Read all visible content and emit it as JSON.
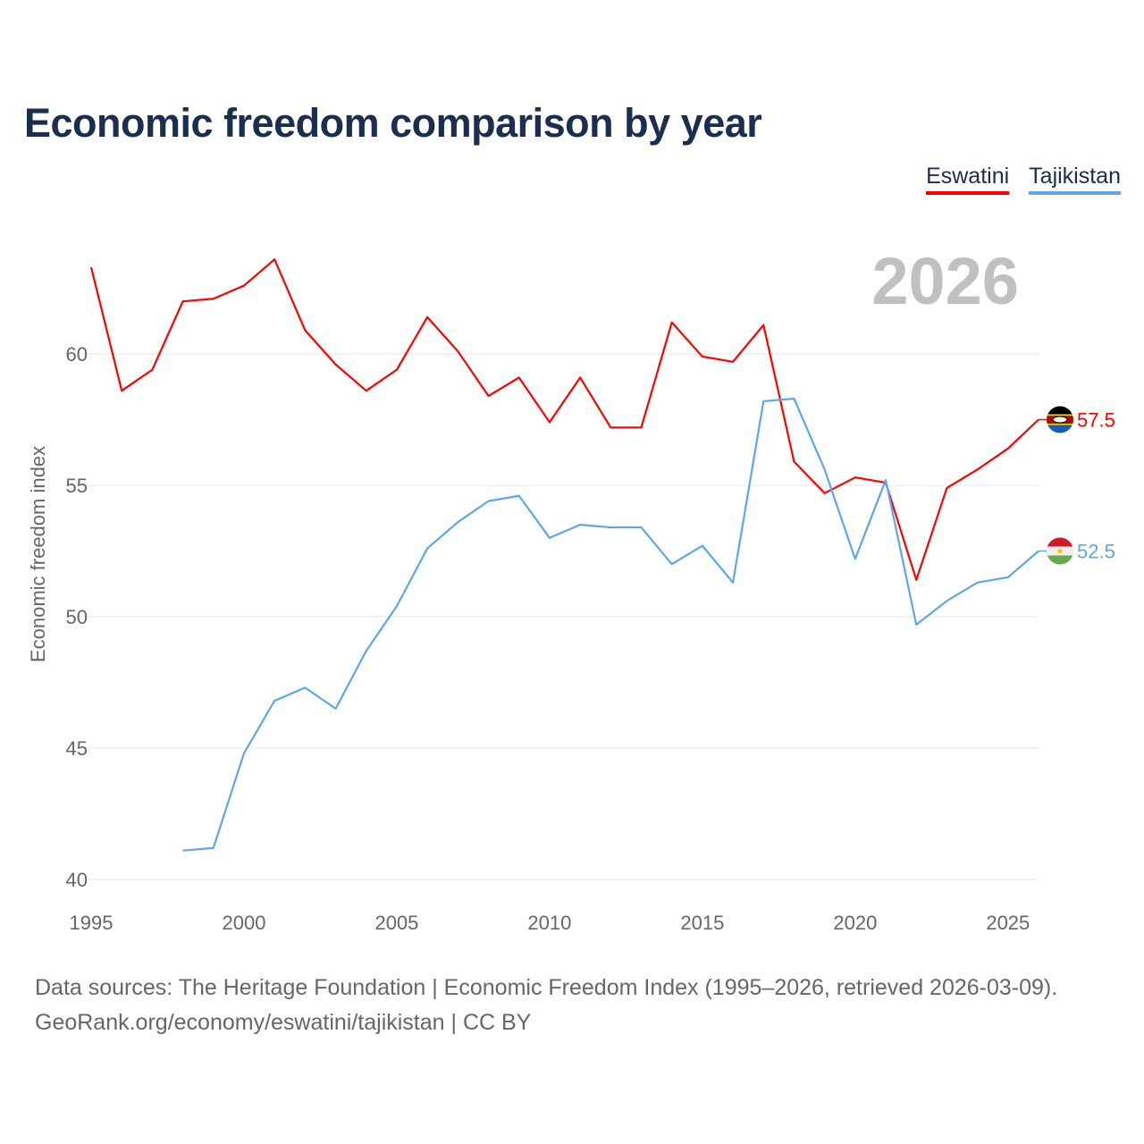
{
  "title": "Economic freedom comparison by year",
  "year_label": "2026",
  "footer": {
    "line1": "Data sources: The Heritage Foundation | Economic Freedom Index (1995–2026, retrieved 2026-03-09).",
    "line2": "GeoRank.org/economy/eswatini/tajikistan | CC BY"
  },
  "chart_data": {
    "type": "line",
    "title": "Economic freedom comparison by year",
    "xlabel": "",
    "ylabel": "Economic freedom index",
    "xlim": [
      1995,
      2026
    ],
    "ylim": [
      40,
      64
    ],
    "xticks": [
      1995,
      2000,
      2005,
      2010,
      2015,
      2020,
      2025
    ],
    "yticks": [
      40,
      45,
      50,
      55,
      60
    ],
    "grid": true,
    "legend": "top-right",
    "series": [
      {
        "name": "Eswatini",
        "color": "#ff0000",
        "end_label": "57.5",
        "flag": "eswatini-flag",
        "x": [
          1995,
          1996,
          1997,
          1998,
          1999,
          2000,
          2001,
          2002,
          2003,
          2004,
          2005,
          2006,
          2007,
          2008,
          2009,
          2010,
          2011,
          2012,
          2013,
          2014,
          2015,
          2016,
          2017,
          2018,
          2019,
          2020,
          2021,
          2022,
          2023,
          2024,
          2025,
          2026
        ],
        "values": [
          63.3,
          58.6,
          59.4,
          62.0,
          62.1,
          62.6,
          63.6,
          60.9,
          59.6,
          58.6,
          59.4,
          61.4,
          60.1,
          58.4,
          59.1,
          57.4,
          59.1,
          57.2,
          57.2,
          61.2,
          59.9,
          59.7,
          61.1,
          55.9,
          54.7,
          55.3,
          55.1,
          51.4,
          54.9,
          55.6,
          56.4,
          57.5
        ]
      },
      {
        "name": "Tajikistan",
        "color": "#5ea6ea",
        "end_label": "52.5",
        "flag": "tajikistan-flag",
        "x": [
          1998,
          1999,
          2000,
          2001,
          2002,
          2003,
          2004,
          2005,
          2006,
          2007,
          2008,
          2009,
          2010,
          2011,
          2012,
          2013,
          2014,
          2015,
          2016,
          2017,
          2018,
          2019,
          2020,
          2021,
          2022,
          2023,
          2024,
          2025,
          2026
        ],
        "values": [
          41.1,
          41.2,
          44.8,
          46.8,
          47.3,
          46.5,
          48.7,
          50.4,
          52.6,
          53.6,
          54.4,
          54.6,
          53.0,
          53.5,
          53.4,
          53.4,
          52.0,
          52.7,
          51.3,
          58.2,
          58.3,
          55.6,
          52.2,
          55.2,
          49.7,
          50.6,
          51.3,
          51.5,
          52.5
        ]
      }
    ]
  }
}
